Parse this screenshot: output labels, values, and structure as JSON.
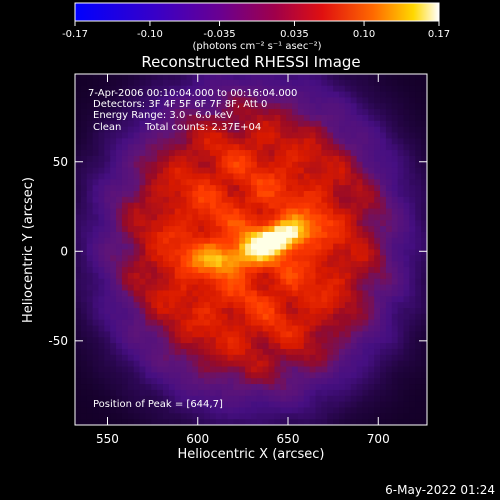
{
  "chart_data": {
    "type": "heatmap",
    "title": "Reconstructed RHESSI Image",
    "xlabel": "Heliocentric X (arcsec)",
    "ylabel": "Heliocentric Y (arcsec)",
    "xlim": [
      532,
      727
    ],
    "ylim": [
      -97,
      99
    ],
    "x_ticks": [
      550,
      600,
      650,
      700
    ],
    "y_ticks": [
      -50,
      0,
      50
    ],
    "colorbar": {
      "colormap": "hot",
      "range": [
        -0.17,
        0.17
      ],
      "ticks": [
        {
          "value": -0.17,
          "label": "-0.17"
        },
        {
          "value": -0.1,
          "label": "-0.10"
        },
        {
          "value": -0.035,
          "label": "-0.035"
        },
        {
          "value": 0.035,
          "label": "0.035"
        },
        {
          "value": 0.1,
          "label": "0.10"
        },
        {
          "value": 0.17,
          "label": "0.17"
        }
      ],
      "unit_label": "(photons cm⁻² s⁻¹ asec⁻²)"
    },
    "annotations": {
      "time_range": "7-Apr-2006 00:10:04.000 to 00:16:04.000",
      "detectors": "Detectors: 3F 4F 5F 6F 7F 8F, Att 0",
      "energy_range": "Energy Range: 3.0 - 6.0 keV",
      "method": "Clean",
      "total_counts": "Total counts: 2.37E+04",
      "peak_position": "Position of Peak = [644,7]"
    },
    "peak": {
      "x": 644,
      "y": 7
    }
  },
  "footer": {
    "timestamp": "6-May-2022 01:24"
  },
  "colors": {
    "background": "#000000",
    "text": "#ffffff"
  }
}
